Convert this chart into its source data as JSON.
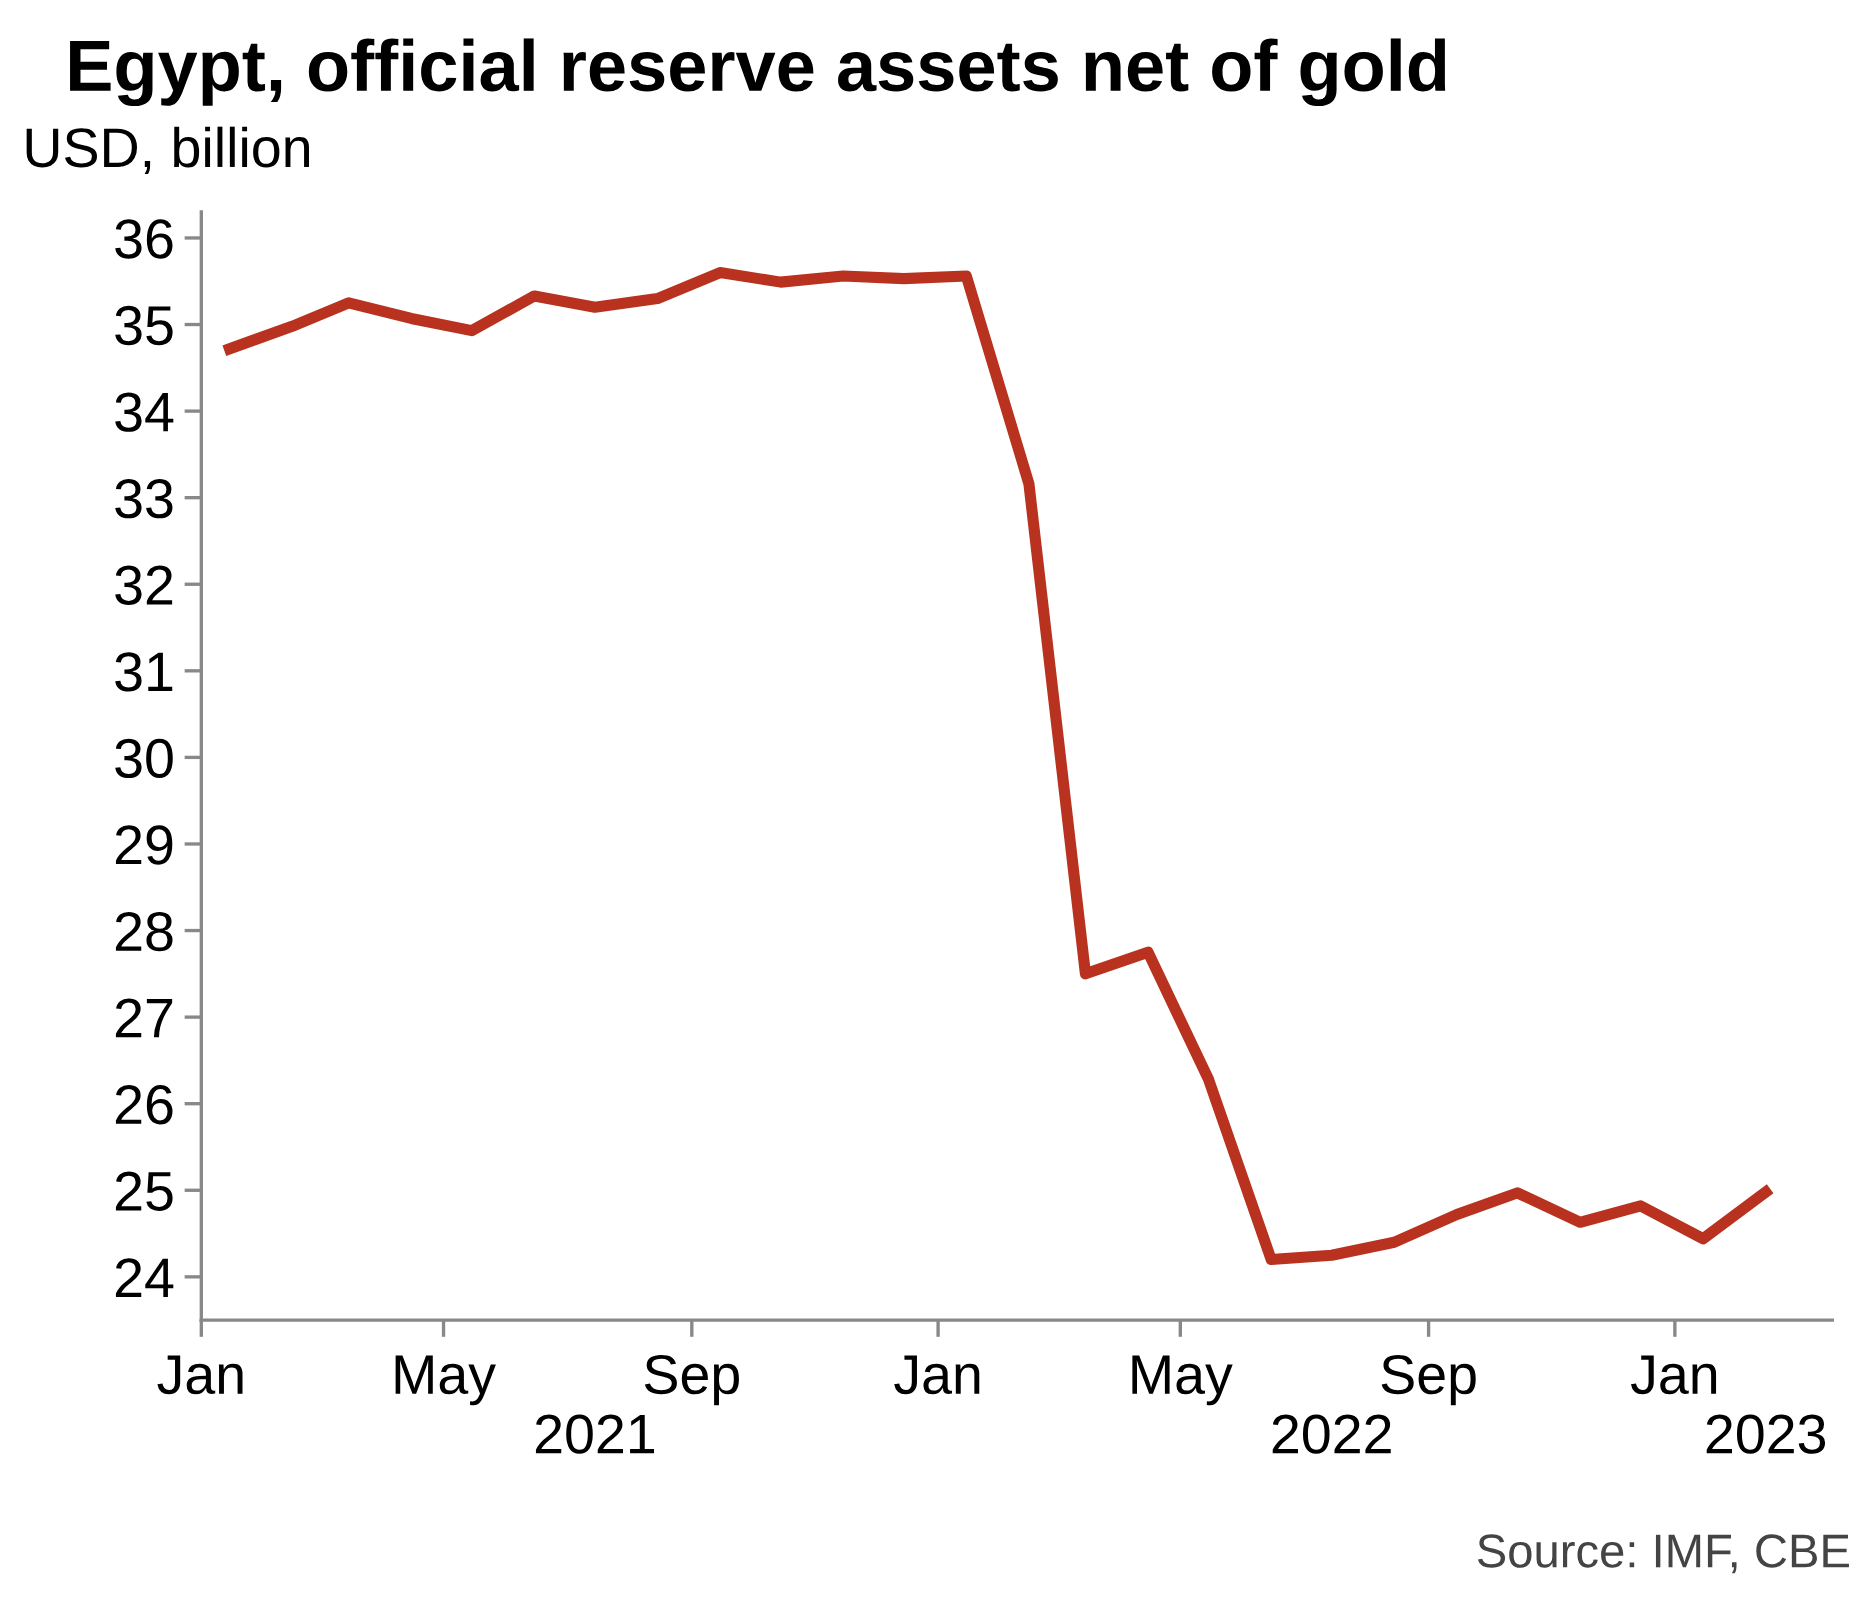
{
  "chart_data": {
    "type": "line",
    "title": "Egypt, official reserve assets net of gold",
    "ylabel": "USD, billion",
    "annotations": [
      "Source: IMF, CBE"
    ],
    "x": [
      "2021-01-15",
      "2021-02-15",
      "2021-03-15",
      "2021-04-15",
      "2021-05-15",
      "2021-06-15",
      "2021-07-15",
      "2021-08-15",
      "2021-09-15",
      "2021-10-15",
      "2021-11-15",
      "2021-12-15",
      "2022-01-15",
      "2022-02-15",
      "2022-03-15",
      "2022-04-15",
      "2022-05-15",
      "2022-06-15",
      "2022-07-15",
      "2022-08-15",
      "2022-09-15",
      "2022-10-15",
      "2022-11-15",
      "2022-12-15",
      "2023-01-15",
      "2023-02-15"
    ],
    "series": [
      {
        "color": "#b8321f",
        "values": [
          34.72,
          34.98,
          35.25,
          35.07,
          34.93,
          35.33,
          35.2,
          35.3,
          35.6,
          35.49,
          35.56,
          35.53,
          35.56,
          33.16,
          27.5,
          27.75,
          26.28,
          24.2,
          24.25,
          24.4,
          24.72,
          24.97,
          24.63,
          24.82,
          24.44,
          24.98
        ]
      }
    ],
    "xlim": [
      "2021-01-01",
      "2023-03-20"
    ],
    "xticks": [
      {
        "value": "2021-01-01",
        "label": "Jan"
      },
      {
        "value": "2021-05-01",
        "label": "May"
      },
      {
        "value": "2021-09-01",
        "label": "Sep"
      },
      {
        "value": "2022-01-01",
        "label": "Jan"
      },
      {
        "value": "2022-05-01",
        "label": "May"
      },
      {
        "value": "2022-09-01",
        "label": "Sep"
      },
      {
        "value": "2023-01-01",
        "label": "Jan"
      }
    ],
    "x2lim": [
      "2021-01-01",
      "2023-03-20"
    ],
    "x2ticks": [
      {
        "value": "2021-07-15",
        "label": "2021"
      },
      {
        "value": "2022-07-15",
        "label": "2022"
      },
      {
        "value": "2023-02-15",
        "label": "2023"
      }
    ],
    "ylim": [
      23.5,
      36.3
    ],
    "yticks": [
      24,
      25,
      26,
      27,
      28,
      29,
      30,
      31,
      32,
      33,
      34,
      35,
      36
    ],
    "grid": false,
    "legend": false,
    "marker": "none",
    "line_style": "solid"
  }
}
